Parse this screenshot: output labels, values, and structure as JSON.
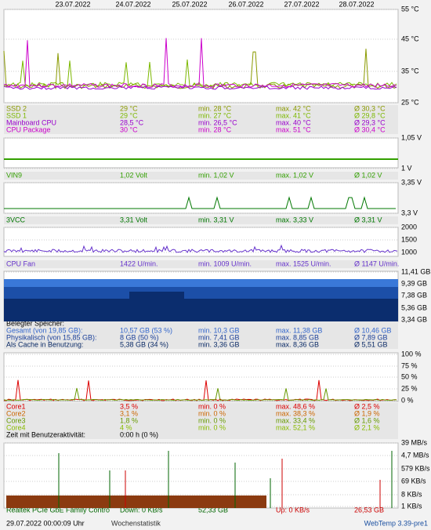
{
  "dates": [
    "23.07.2022",
    "24.07.2022",
    "25.07.2022",
    "26.07.2022",
    "27.07.2022",
    "28.07.2022"
  ],
  "panels": [
    {
      "axis": [
        "55 °C",
        "45 °C",
        "35 °C",
        "25 °C"
      ],
      "rows": [
        {
          "color": "#8a9a00",
          "cells": [
            "SSD 2",
            "29 °C",
            "min. 28 °C",
            "max. 42 °C",
            "Ø 30,3 °C"
          ]
        },
        {
          "color": "#7cb800",
          "cells": [
            "SSD 1",
            "29 °C",
            "min. 27 °C",
            "max. 41 °C",
            "Ø 29,8 °C"
          ]
        },
        {
          "color": "#9900cc",
          "cells": [
            "Mainboard CPU",
            "28,5 °C",
            "min. 26,5 °C",
            "max. 40 °C",
            "Ø 29,3 °C"
          ]
        },
        {
          "color": "#cc00cc",
          "cells": [
            "CPU Package",
            "30 °C",
            "min. 28 °C",
            "max. 51 °C",
            "Ø 30,4 °C"
          ]
        }
      ]
    },
    {
      "axis": [
        "1,05 V",
        "1 V"
      ],
      "rows": [
        {
          "color": "#33a000",
          "cells": [
            "VIN9",
            "1,02 Volt",
            "min. 1,02 V",
            "max. 1,02 V",
            "Ø 1,02 V"
          ]
        }
      ]
    },
    {
      "axis": [
        "3,35 V",
        "3,3 V"
      ],
      "rows": [
        {
          "color": "#007700",
          "cells": [
            "3VCC",
            "3,31 Volt",
            "min. 3,31 V",
            "max. 3,33 V",
            "Ø 3,31 V"
          ]
        }
      ]
    },
    {
      "axis": [
        "2000",
        "1500",
        "1000"
      ],
      "rows": [
        {
          "color": "#6633cc",
          "cells": [
            "CPU Fan",
            "1422 U/min.",
            "min. 1009 U/min.",
            "max. 1525 U/min.",
            "Ø 1147 U/min."
          ]
        }
      ]
    },
    {
      "axis": [
        "11,41 GB",
        "9,39 GB",
        "7,38 GB",
        "5,36 GB",
        "3,34 GB"
      ],
      "rows": [
        {
          "color": "#000000",
          "cells": [
            "Belegter Speicher:"
          ]
        },
        {
          "color": "#3366cc",
          "cells": [
            "Gesamt (von 19,85 GB):",
            "10,57 GB (53 %)",
            "min. 10,3 GB",
            "max. 11,38 GB",
            "Ø 10,46 GB"
          ]
        },
        {
          "color": "#1a3f99",
          "cells": [
            "Physikalisch (von 15,85 GB):",
            "8 GB (50 %)",
            "min. 7,41 GB",
            "max. 8,85 GB",
            "Ø 7,89 GB"
          ]
        },
        {
          "color": "#0a2a66",
          "cells": [
            "Als Cache in Benutzung:",
            "5,38 GB (34 %)",
            "min. 3,36 GB",
            "max. 8,36 GB",
            "Ø 5,51 GB"
          ]
        }
      ]
    },
    {
      "axis": [
        "100 %",
        "75 %",
        "50 %",
        "25 %",
        "0 %"
      ],
      "rows": [
        {
          "color": "#dd0000",
          "cells": [
            "Core1",
            "3,5 %",
            "min. 0 %",
            "max. 48,6 %",
            "Ø 2,5 %"
          ]
        },
        {
          "color": "#cc6600",
          "cells": [
            "Core2",
            "3,1 %",
            "min. 0 %",
            "max. 38,3 %",
            "Ø 1,9 %"
          ]
        },
        {
          "color": "#669900",
          "cells": [
            "Core3",
            "1,8 %",
            "min. 0 %",
            "max. 33,4 %",
            "Ø 1,6 %"
          ]
        },
        {
          "color": "#88bb00",
          "cells": [
            "Core4",
            "4 %",
            "min. 0 %",
            "max. 52,1 %",
            "Ø 2,1 %"
          ]
        },
        {
          "color": "#000000",
          "cells": [
            "Zeit mit Benutzeraktivität:",
            "0:00 h (0 %)"
          ]
        }
      ]
    },
    {
      "axis": [
        "39 MB/s",
        "4,7 MB/s",
        "579 KB/s",
        "69 KB/s",
        "8 KB/s",
        "1 KB/s"
      ],
      "rows": [
        {
          "color": "#006600",
          "cells": [
            "Realtek PCIe GbE Family Contro",
            "Down: 0 KB/s",
            "52,33 GB",
            "Up: 0 KB/s",
            "26,53 GB"
          ]
        }
      ]
    }
  ],
  "footer": {
    "timestamp": "29.07.2022 00:00:09 Uhr",
    "link": "Wochenstatistik",
    "version": "WebTemp 3.39-pre1"
  }
}
